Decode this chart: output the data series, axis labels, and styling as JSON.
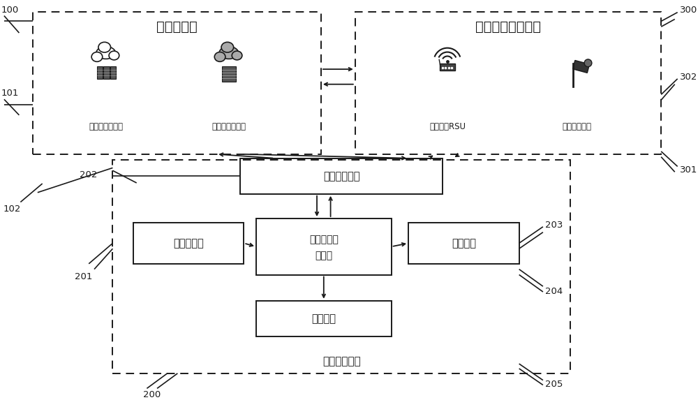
{
  "bg_color": "#ffffff",
  "labels": {
    "cloud_platform": "云计算平台",
    "center_cloud": "中心云计算平台",
    "edge_cloud": "边缘云计算平台",
    "smart_traffic": "智慧交通基础设施",
    "rsu": "路侧单元RSU",
    "roadside_sensor": "路侧感知设备",
    "network_module": "网络通讯模块",
    "sensor_module": "传感器模块",
    "chassis_controller_line1": "底盘域控制",
    "chassis_controller_line2": "器模块",
    "display_module": "显示模块",
    "execution_module": "执行模块",
    "chassis_terminal": "底盘控制终端"
  },
  "ref_nums": [
    "100",
    "101",
    "102",
    "200",
    "201",
    "202",
    "203",
    "204",
    "205",
    "300",
    "301",
    "302"
  ]
}
